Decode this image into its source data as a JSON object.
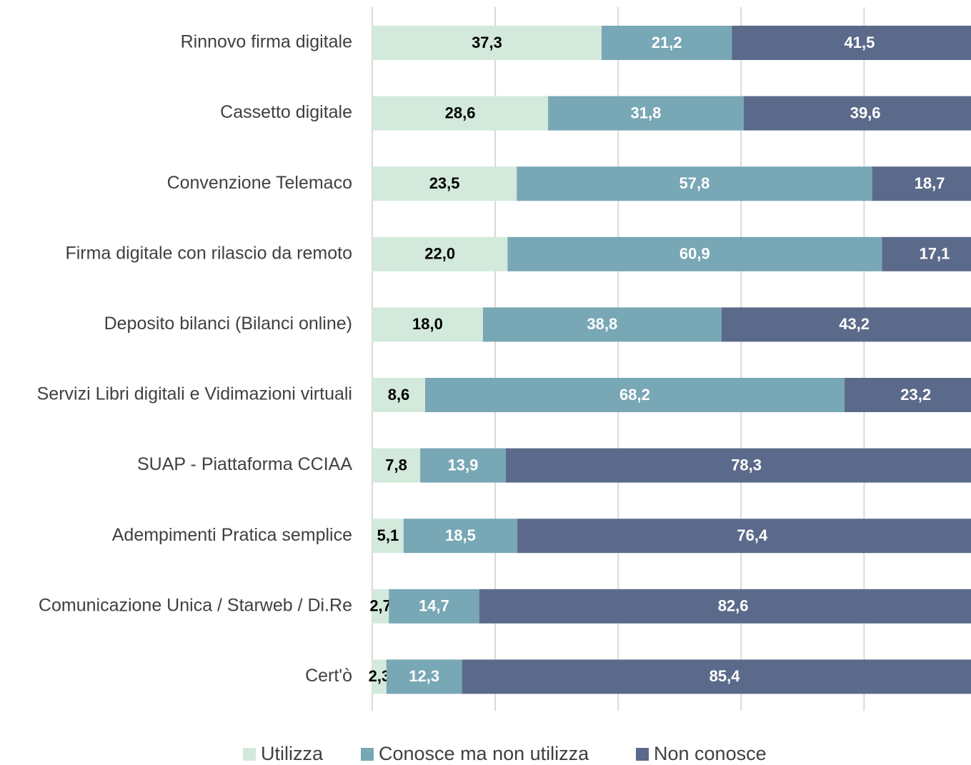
{
  "chart_data": {
    "type": "stacked_barh",
    "categories": [
      "Rinnovo firma digitale",
      "Cassetto digitale",
      "Convenzione Telemaco",
      "Firma digitale con rilascio da remoto",
      "Deposito bilanci (Bilanci online)",
      "Servizi Libri digitali e Vidimazioni virtuali",
      "SUAP - Piattaforma CCIAA",
      "Adempimenti Pratica semplice",
      "Comunicazione Unica / Starweb / Di.Re",
      "Cert'ò"
    ],
    "series": [
      {
        "name": "Utilizza",
        "color": "#d3e9dc",
        "label_color": "#000000",
        "values": [
          37.3,
          28.6,
          23.5,
          22.0,
          18.0,
          8.6,
          7.8,
          5.1,
          2.7,
          2.3
        ],
        "value_labels": [
          "37,3",
          "28,6",
          "23,5",
          "22,0",
          "18,0",
          "8,6",
          "7,8",
          "5,1",
          "2,7",
          "2,3"
        ]
      },
      {
        "name": "Conosce ma non utilizza",
        "color": "#78a7b5",
        "label_color": "#ffffff",
        "values": [
          21.2,
          31.8,
          57.8,
          60.9,
          38.8,
          68.2,
          13.9,
          18.5,
          14.7,
          12.3
        ],
        "value_labels": [
          "21,2",
          "31,8",
          "57,8",
          "60,9",
          "38,8",
          "68,2",
          "13,9",
          "18,5",
          "14,7",
          "12,3"
        ]
      },
      {
        "name": "Non conosce",
        "color": "#5b6a8a",
        "label_color": "#ffffff",
        "values": [
          41.5,
          39.6,
          18.7,
          17.1,
          43.2,
          23.2,
          78.3,
          76.4,
          82.6,
          85.4
        ],
        "value_labels": [
          "41,5",
          "39,6",
          "18,7",
          "17,1",
          "43,2",
          "23,2",
          "78,3",
          "76,4",
          "82,6",
          "85,4"
        ]
      }
    ],
    "xlim": [
      0,
      100
    ],
    "xticks": [
      0,
      20,
      40,
      60,
      80,
      100
    ],
    "grid": true,
    "legend": "bottom"
  }
}
